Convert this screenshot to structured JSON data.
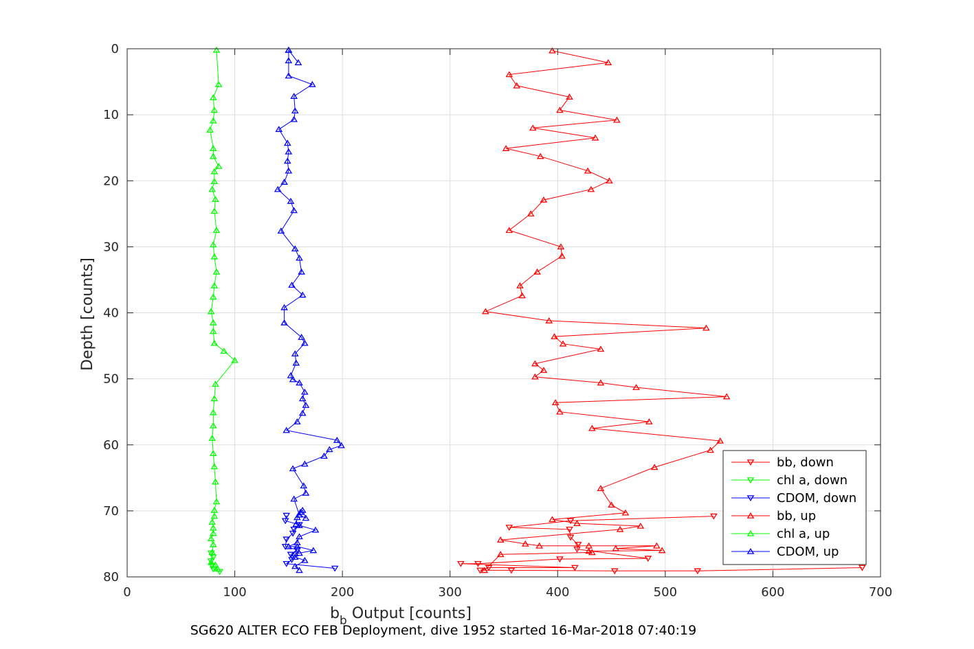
{
  "chart_data": {
    "type": "line",
    "xlabel": "Output [counts]",
    "xlabel_symbol": "b",
    "xlabel_subscript": "b",
    "ylabel": "Depth [counts]",
    "caption": "SG620 ALTER ECO FEB Deployment, dive 1952 started 16-Mar-2018 07:40:19",
    "xlim": [
      0,
      700
    ],
    "ylim": [
      0,
      80
    ],
    "y_reversed": true,
    "xticks": [
      "0",
      "100",
      "200",
      "300",
      "400",
      "500",
      "600",
      "700"
    ],
    "yticks": [
      "0",
      "10",
      "20",
      "30",
      "40",
      "50",
      "60",
      "70",
      "80"
    ],
    "grid": true,
    "legend_position": "lower-right",
    "series": [
      {
        "name": "bb, down",
        "color": "#ff0000",
        "marker": "triangle-down",
        "x": [
          683,
          530,
          453,
          357,
          328,
          336,
          416,
          310,
          326,
          402,
          484,
          418,
          419,
          412,
          411,
          355,
          412,
          545
        ],
        "y": [
          78.6,
          79.1,
          79.1,
          79.0,
          79.0,
          78.6,
          78.6,
          78.0,
          78.0,
          77.3,
          77.2,
          75.8,
          75.1,
          74.0,
          72.8,
          72.5,
          71.5,
          70.8
        ]
      },
      {
        "name": "chl a, down",
        "color": "#00ff00",
        "marker": "triangle-down",
        "x": [
          86,
          80,
          79,
          78,
          80,
          78
        ],
        "y": [
          79.2,
          78.8,
          78.3,
          77.6,
          77.0,
          76.4
        ]
      },
      {
        "name": "CDOM, down",
        "color": "#0000ff",
        "marker": "triangle-down",
        "x": [
          193,
          148,
          153,
          152,
          158,
          147,
          148,
          154,
          155,
          160,
          147,
          148
        ],
        "y": [
          78.7,
          78.0,
          77.4,
          76.6,
          75.9,
          75.4,
          74.3,
          73.4,
          72.8,
          72.1,
          71.5,
          70.7
        ]
      },
      {
        "name": "bb, up",
        "color": "#ff0000",
        "marker": "triangle-up",
        "x": [
          332,
          347,
          432,
          429,
          497,
          454,
          492,
          429,
          383,
          370,
          347,
          458,
          477,
          418,
          395,
          463,
          450,
          440,
          490,
          542,
          551,
          432,
          485,
          402,
          398,
          557,
          473,
          440,
          379,
          387,
          379,
          440,
          405,
          397,
          538,
          392,
          333,
          367,
          365,
          381,
          404,
          403,
          355,
          375,
          387,
          431,
          448,
          428,
          384,
          352,
          435,
          377,
          455,
          402,
          411,
          362,
          355,
          447,
          395
        ],
        "y": [
          79.0,
          76.6,
          76.3,
          76.1,
          76.0,
          75.7,
          75.3,
          75.3,
          75.3,
          75.0,
          74.4,
          72.8,
          72.3,
          71.9,
          71.3,
          70.3,
          69.1,
          66.6,
          63.4,
          60.8,
          59.4,
          57.5,
          56.5,
          55.0,
          53.6,
          52.7,
          51.3,
          50.6,
          49.7,
          48.7,
          47.7,
          45.5,
          44.7,
          43.6,
          42.3,
          41.2,
          39.8,
          37.4,
          35.9,
          33.8,
          31.4,
          30.0,
          27.5,
          25.0,
          22.9,
          21.3,
          20.0,
          18.5,
          16.3,
          15.1,
          13.5,
          12.0,
          10.8,
          9.3,
          7.3,
          5.6,
          3.9,
          2.1,
          0.3
        ]
      },
      {
        "name": "chl a, up",
        "color": "#00ff00",
        "marker": "triangle-up",
        "x": [
          84,
          82,
          78,
          79,
          80,
          78,
          80,
          80,
          79,
          81,
          81,
          83,
          82,
          81,
          80,
          79,
          80,
          80,
          81,
          82,
          100,
          90,
          81,
          80,
          80,
          78,
          80,
          81,
          83,
          81,
          80,
          83,
          81,
          82,
          79,
          81,
          81,
          85,
          80,
          80,
          77,
          80,
          81,
          80,
          85,
          83
        ],
        "y": [
          78.8,
          78.2,
          77.8,
          76.3,
          75.1,
          74.2,
          73.4,
          72.6,
          71.7,
          70.8,
          69.9,
          68.6,
          65.6,
          63.3,
          61.3,
          59.0,
          57.1,
          55.1,
          53.0,
          50.8,
          47.2,
          45.8,
          44.6,
          42.8,
          41.5,
          39.8,
          37.6,
          35.9,
          33.8,
          31.5,
          29.7,
          27.5,
          24.6,
          22.8,
          21.3,
          20.1,
          18.6,
          17.8,
          16.3,
          15.1,
          12.3,
          10.9,
          9.3,
          7.4,
          5.4,
          0.2
        ]
      },
      {
        "name": "CDOM, up",
        "color": "#0000ff",
        "marker": "triangle-up",
        "x": [
          160,
          156,
          165,
          156,
          156,
          160,
          173,
          158,
          150,
          158,
          160,
          175,
          160,
          157,
          158,
          161,
          163,
          166,
          160,
          155,
          166,
          164,
          154,
          165,
          183,
          188,
          199,
          195,
          148,
          158,
          163,
          166,
          163,
          165,
          160,
          154,
          152,
          157,
          156,
          165,
          162,
          146,
          146,
          163,
          153,
          162,
          160,
          156,
          143,
          155,
          152,
          140,
          146,
          150,
          149,
          150,
          149,
          141,
          155,
          156,
          155,
          172,
          150,
          150,
          150,
          159,
          150
        ],
        "y": [
          79.0,
          78.4,
          77.5,
          77.0,
          76.5,
          76.4,
          76.0,
          75.4,
          75.4,
          74.8,
          73.9,
          72.9,
          72.2,
          72.0,
          71.0,
          70.2,
          69.9,
          71.1,
          70.6,
          68.2,
          67.3,
          66.2,
          63.6,
          62.9,
          61.7,
          60.7,
          60.1,
          59.3,
          57.8,
          56.5,
          55.2,
          54.0,
          53.0,
          52.0,
          50.6,
          50.1,
          49.5,
          47.6,
          46.2,
          44.6,
          43.7,
          41.5,
          39.2,
          37.3,
          35.8,
          33.8,
          31.7,
          30.3,
          27.6,
          24.5,
          23.1,
          21.3,
          20.2,
          18.5,
          17.0,
          15.6,
          14.3,
          12.2,
          10.7,
          9.4,
          7.2,
          5.4,
          4.1,
          1.8,
          0.2,
          2.1,
          0.2
        ]
      }
    ]
  }
}
